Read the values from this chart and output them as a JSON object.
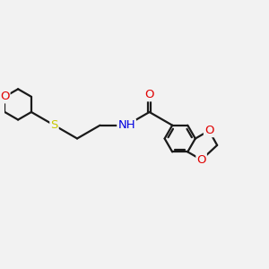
{
  "background_color": "#f2f2f2",
  "bond_color": "#1a1a1a",
  "atom_colors": {
    "O": "#e00000",
    "N": "#0000e0",
    "S": "#c8c800",
    "C": "#1a1a1a"
  },
  "lw": 1.6,
  "figsize": [
    3.0,
    3.0
  ],
  "dpi": 100,
  "xlim": [
    -2.6,
    2.6
  ],
  "ylim": [
    -1.5,
    1.5
  ]
}
